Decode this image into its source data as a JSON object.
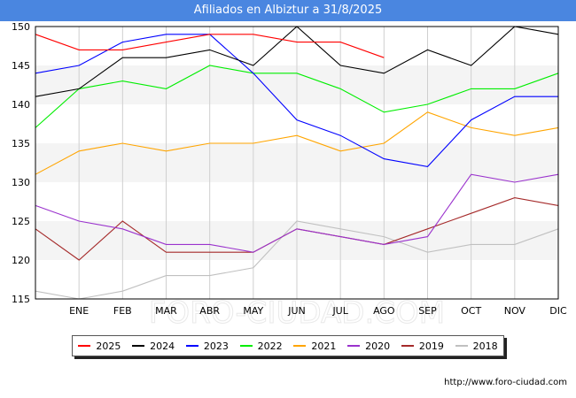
{
  "header": {
    "title": "Afiliados en Albiztur a 31/8/2025"
  },
  "footer": {
    "url": "http://www.foro-ciudad.com"
  },
  "watermark": "FORO-CIUDAD.COM",
  "chart_data": {
    "type": "line",
    "title": "Afiliados en Albiztur a 31/8/2025",
    "xlabel": "",
    "ylabel": "",
    "categories": [
      "",
      "ENE",
      "FEB",
      "MAR",
      "ABR",
      "MAY",
      "JUN",
      "JUL",
      "AGO",
      "SEP",
      "OCT",
      "NOV",
      "DIC"
    ],
    "ylim": [
      115,
      150
    ],
    "yticks": [
      115,
      120,
      125,
      130,
      135,
      140,
      145,
      150
    ],
    "grid": true,
    "legend_position": "bottom",
    "series": [
      {
        "name": "2025",
        "color": "#ff0000",
        "values": [
          149,
          147,
          147,
          148,
          149,
          149,
          148,
          148,
          146,
          null,
          null,
          null,
          null
        ]
      },
      {
        "name": "2024",
        "color": "#000000",
        "values": [
          141,
          142,
          146,
          146,
          147,
          145,
          150,
          145,
          144,
          147,
          145,
          150,
          149
        ]
      },
      {
        "name": "2023",
        "color": "#0000ff",
        "values": [
          144,
          145,
          148,
          149,
          149,
          144,
          138,
          136,
          133,
          132,
          138,
          141,
          141
        ]
      },
      {
        "name": "2022",
        "color": "#00ee00",
        "values": [
          137,
          142,
          143,
          142,
          145,
          144,
          144,
          142,
          139,
          140,
          142,
          142,
          144
        ]
      },
      {
        "name": "2021",
        "color": "#ffa500",
        "values": [
          131,
          134,
          135,
          134,
          135,
          135,
          136,
          134,
          135,
          139,
          137,
          136,
          137
        ]
      },
      {
        "name": "2020",
        "color": "#9a32cd",
        "values": [
          127,
          125,
          124,
          122,
          122,
          121,
          124,
          123,
          122,
          123,
          131,
          130,
          131
        ]
      },
      {
        "name": "2019",
        "color": "#a52a2a",
        "values": [
          124,
          120,
          125,
          121,
          121,
          121,
          124,
          123,
          122,
          124,
          126,
          128,
          127
        ]
      },
      {
        "name": "2018",
        "color": "#c0c0c0",
        "values": [
          116,
          115,
          116,
          118,
          118,
          119,
          125,
          124,
          123,
          121,
          122,
          122,
          124
        ]
      }
    ]
  }
}
